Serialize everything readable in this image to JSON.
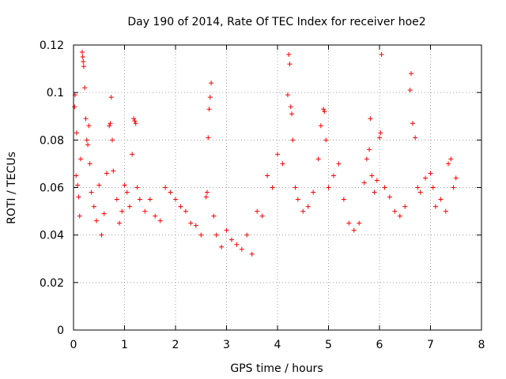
{
  "chart_data": {
    "type": "scatter",
    "title": "Day 190 of 2014, Rate Of TEC Index for receiver hoe2",
    "xlabel": "GPS time / hours",
    "ylabel": "ROTI / TECUs",
    "xlim": [
      0,
      8
    ],
    "ylim": [
      0,
      0.12
    ],
    "xticks": [
      0,
      1,
      2,
      3,
      4,
      5,
      6,
      7,
      8
    ],
    "xtick_labels": [
      "0",
      "1",
      "2",
      "3",
      "4",
      "5",
      "6",
      "7",
      "8"
    ],
    "yticks": [
      0,
      0.02,
      0.04,
      0.06,
      0.08,
      0.1,
      0.12
    ],
    "ytick_labels": [
      "0",
      "0.02",
      "0.04",
      "0.06",
      "0.08",
      "0.1",
      "0.12"
    ],
    "grid": true,
    "marker": "+",
    "color": "#ff0000",
    "series": [
      {
        "name": "ROTI",
        "points": [
          [
            0.02,
            0.094
          ],
          [
            0.03,
            0.099
          ],
          [
            0.05,
            0.065
          ],
          [
            0.06,
            0.083
          ],
          [
            0.08,
            0.061
          ],
          [
            0.1,
            0.056
          ],
          [
            0.12,
            0.048
          ],
          [
            0.14,
            0.072
          ],
          [
            0.17,
            0.117
          ],
          [
            0.18,
            0.115
          ],
          [
            0.19,
            0.113
          ],
          [
            0.2,
            0.111
          ],
          [
            0.22,
            0.102
          ],
          [
            0.24,
            0.089
          ],
          [
            0.26,
            0.08
          ],
          [
            0.28,
            0.078
          ],
          [
            0.3,
            0.086
          ],
          [
            0.32,
            0.07
          ],
          [
            0.35,
            0.058
          ],
          [
            0.4,
            0.052
          ],
          [
            0.45,
            0.046
          ],
          [
            0.5,
            0.061
          ],
          [
            0.55,
            0.04
          ],
          [
            0.6,
            0.049
          ],
          [
            0.65,
            0.066
          ],
          [
            0.7,
            0.086
          ],
          [
            0.72,
            0.087
          ],
          [
            0.74,
            0.098
          ],
          [
            0.76,
            0.08
          ],
          [
            0.78,
            0.067
          ],
          [
            0.85,
            0.055
          ],
          [
            0.9,
            0.045
          ],
          [
            0.95,
            0.05
          ],
          [
            1.0,
            0.061
          ],
          [
            1.05,
            0.058
          ],
          [
            1.1,
            0.052
          ],
          [
            1.15,
            0.074
          ],
          [
            1.18,
            0.089
          ],
          [
            1.2,
            0.088
          ],
          [
            1.22,
            0.087
          ],
          [
            1.25,
            0.06
          ],
          [
            1.3,
            0.055
          ],
          [
            1.4,
            0.05
          ],
          [
            1.5,
            0.055
          ],
          [
            1.6,
            0.048
          ],
          [
            1.7,
            0.046
          ],
          [
            1.8,
            0.06
          ],
          [
            1.9,
            0.058
          ],
          [
            2.0,
            0.055
          ],
          [
            2.1,
            0.052
          ],
          [
            2.2,
            0.05
          ],
          [
            2.3,
            0.045
          ],
          [
            2.4,
            0.044
          ],
          [
            2.5,
            0.04
          ],
          [
            2.6,
            0.056
          ],
          [
            2.62,
            0.058
          ],
          [
            2.64,
            0.081
          ],
          [
            2.66,
            0.093
          ],
          [
            2.68,
            0.098
          ],
          [
            2.7,
            0.104
          ],
          [
            2.75,
            0.048
          ],
          [
            2.8,
            0.04
          ],
          [
            2.9,
            0.035
          ],
          [
            3.0,
            0.042
          ],
          [
            3.1,
            0.038
          ],
          [
            3.2,
            0.036
          ],
          [
            3.3,
            0.034
          ],
          [
            3.4,
            0.04
          ],
          [
            3.5,
            0.032
          ],
          [
            3.6,
            0.05
          ],
          [
            3.7,
            0.048
          ],
          [
            3.8,
            0.065
          ],
          [
            3.9,
            0.06
          ],
          [
            4.0,
            0.074
          ],
          [
            4.1,
            0.07
          ],
          [
            4.2,
            0.099
          ],
          [
            4.22,
            0.116
          ],
          [
            4.24,
            0.112
          ],
          [
            4.26,
            0.094
          ],
          [
            4.28,
            0.091
          ],
          [
            4.3,
            0.08
          ],
          [
            4.35,
            0.06
          ],
          [
            4.4,
            0.055
          ],
          [
            4.5,
            0.05
          ],
          [
            4.6,
            0.052
          ],
          [
            4.7,
            0.058
          ],
          [
            4.8,
            0.072
          ],
          [
            4.85,
            0.086
          ],
          [
            4.9,
            0.093
          ],
          [
            4.92,
            0.092
          ],
          [
            4.95,
            0.08
          ],
          [
            5.0,
            0.06
          ],
          [
            5.1,
            0.065
          ],
          [
            5.2,
            0.07
          ],
          [
            5.3,
            0.055
          ],
          [
            5.4,
            0.045
          ],
          [
            5.5,
            0.042
          ],
          [
            5.6,
            0.045
          ],
          [
            5.7,
            0.062
          ],
          [
            5.75,
            0.072
          ],
          [
            5.8,
            0.076
          ],
          [
            5.82,
            0.089
          ],
          [
            5.85,
            0.065
          ],
          [
            5.9,
            0.058
          ],
          [
            5.95,
            0.063
          ],
          [
            6.0,
            0.081
          ],
          [
            6.02,
            0.083
          ],
          [
            6.04,
            0.116
          ],
          [
            6.1,
            0.06
          ],
          [
            6.2,
            0.056
          ],
          [
            6.3,
            0.05
          ],
          [
            6.4,
            0.048
          ],
          [
            6.5,
            0.052
          ],
          [
            6.6,
            0.101
          ],
          [
            6.62,
            0.108
          ],
          [
            6.65,
            0.087
          ],
          [
            6.7,
            0.081
          ],
          [
            6.75,
            0.06
          ],
          [
            6.8,
            0.058
          ],
          [
            6.9,
            0.064
          ],
          [
            7.0,
            0.066
          ],
          [
            7.05,
            0.06
          ],
          [
            7.1,
            0.052
          ],
          [
            7.2,
            0.055
          ],
          [
            7.3,
            0.05
          ],
          [
            7.35,
            0.07
          ],
          [
            7.4,
            0.072
          ],
          [
            7.45,
            0.06
          ],
          [
            7.5,
            0.064
          ]
        ]
      }
    ]
  }
}
